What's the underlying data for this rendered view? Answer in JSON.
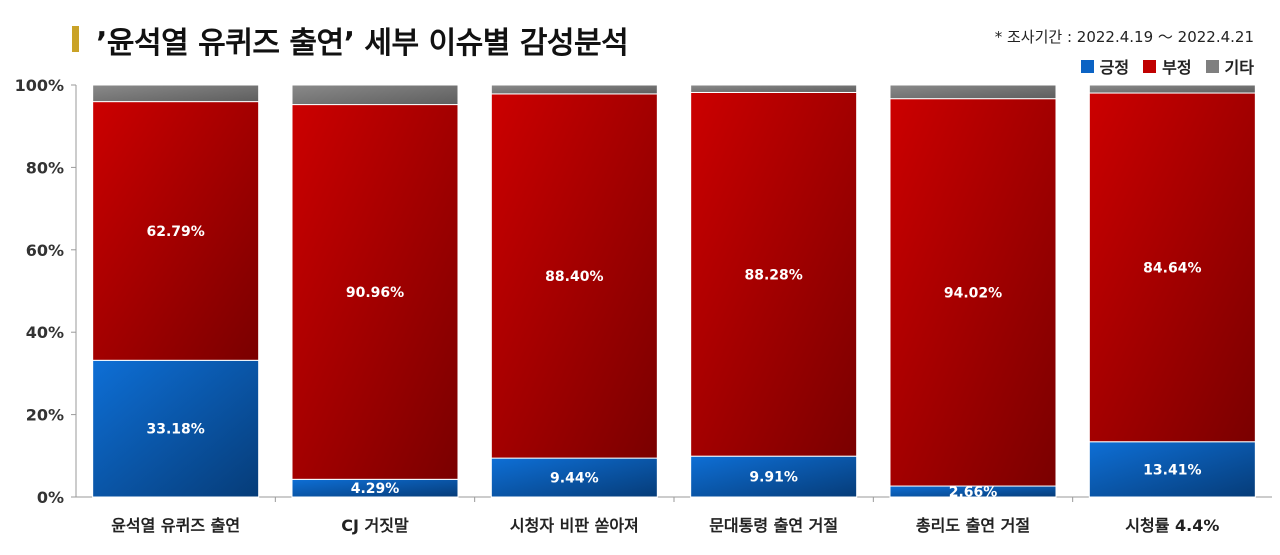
{
  "title_text": "’윤석열 유퀴즈 출연’ 세부 이슈별 감성분석",
  "period_text": "* 조사기간 : 2022.4.19 ～ 2022.4.21",
  "legend": [
    {
      "label": "긍정",
      "color": "#0b63c4"
    },
    {
      "label": "부정",
      "color": "#c00000"
    },
    {
      "label": "기타",
      "color": "#7f7f7f"
    }
  ],
  "chart_data": {
    "type": "bar",
    "stacked": true,
    "title": "’윤석열 유퀴즈 출연’ 세부 이슈별 감성분석",
    "categories": [
      "윤석열 유퀴즈 출연",
      "CJ 거짓말",
      "시청자 비판 쏟아져",
      "문대통령 출연 거절",
      "총리도 출연 거절",
      "시청률 4.4%"
    ],
    "series": [
      {
        "name": "긍정",
        "values": [
          33.18,
          4.29,
          9.44,
          9.91,
          2.66,
          13.41
        ],
        "labels": [
          "33.18%",
          "4.29%",
          "9.44%",
          "9.91%",
          "2.66%",
          "13.41%"
        ],
        "color": "#0b63c4"
      },
      {
        "name": "부정",
        "values": [
          62.79,
          90.96,
          88.4,
          88.28,
          94.02,
          84.64
        ],
        "labels": [
          "62.79%",
          "90.96%",
          "88.40%",
          "88.28%",
          "94.02%",
          "84.64%"
        ],
        "color": "#c00000"
      },
      {
        "name": "기타",
        "values": [
          4.03,
          4.75,
          2.16,
          1.81,
          3.32,
          1.95
        ],
        "color": "#7f7f7f"
      }
    ],
    "y_ticks": [
      "0%",
      "20%",
      "40%",
      "60%",
      "80%",
      "100%"
    ],
    "ylim": [
      0,
      100
    ],
    "legend_position": "top-right",
    "grid": false
  }
}
